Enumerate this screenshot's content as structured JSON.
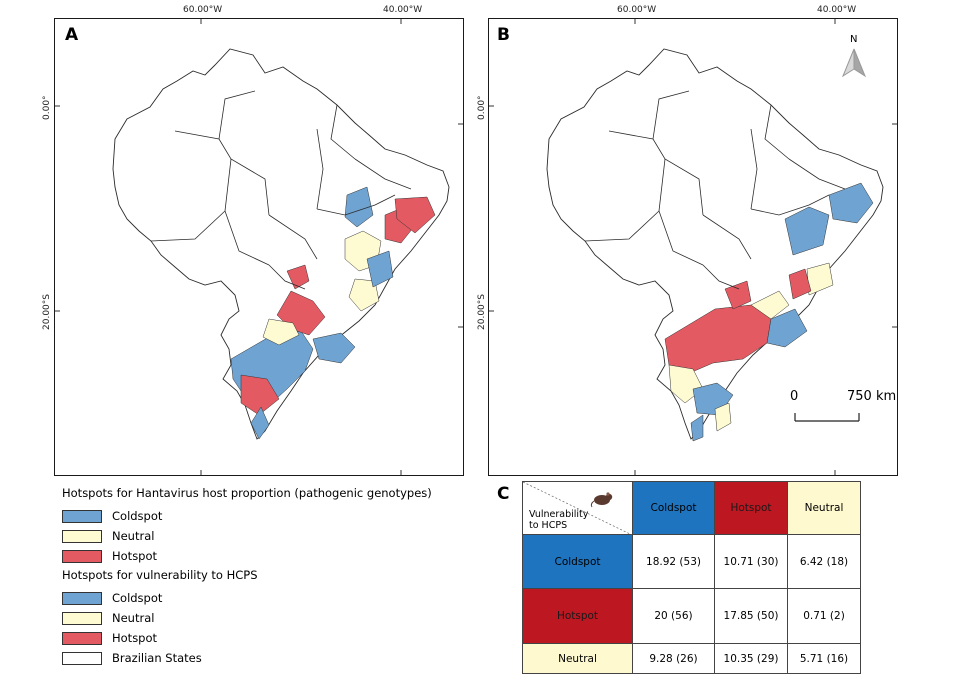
{
  "panels": [
    {
      "letter": "A",
      "lon_ticks": [
        "60.00°W",
        "40.00°W"
      ],
      "lat_ticks": [
        "0.00°",
        "20.00°S"
      ]
    },
    {
      "letter": "B",
      "lon_ticks": [
        "60.00°W",
        "40.00°W"
      ],
      "lat_ticks": [
        "0.00°",
        "20.00°S"
      ]
    }
  ],
  "north_label": "N",
  "scalebar": {
    "start": "0",
    "end": "750 km"
  },
  "legend": {
    "title_host": "Hotspots for Hantavirus host proportion (pathogenic genotypes)",
    "host_items": [
      {
        "label": "Coldspot",
        "color": "#6fa3d1"
      },
      {
        "label": "Neutral",
        "color": "#fefbd3"
      },
      {
        "label": "Hotspot",
        "color": "#e35a63"
      }
    ],
    "title_vuln": "Hotspots for vulnerability to HCPS",
    "vuln_items": [
      {
        "label": "Coldspot",
        "color": "#6fa3d1"
      },
      {
        "label": "Neutral",
        "color": "#fefbd3"
      },
      {
        "label": "Hotspot",
        "color": "#e35a63"
      },
      {
        "label": "Brazilian States",
        "color": "#ffffff"
      }
    ]
  },
  "table": {
    "letter": "C",
    "corner_label": "Vulnerability\nto HCPS",
    "col_headers": [
      "Coldspot",
      "Hotspot",
      "Neutral"
    ],
    "rows": [
      {
        "header": "Coldspot",
        "values": [
          "18.92 (53)",
          "10.71 (30)",
          "6.42 (18)"
        ]
      },
      {
        "header": "Hotspot",
        "values": [
          "20 (56)",
          "17.85 (50)",
          "0.71 (2)"
        ]
      },
      {
        "header": "Neutral",
        "values": [
          "9.28 (26)",
          "10.35 (29)",
          "5.71 (16)"
        ]
      }
    ],
    "colors": {
      "coldspot": "#1f74bf",
      "hotspot": "#bd1722",
      "neutral": "#fef9cf"
    }
  }
}
